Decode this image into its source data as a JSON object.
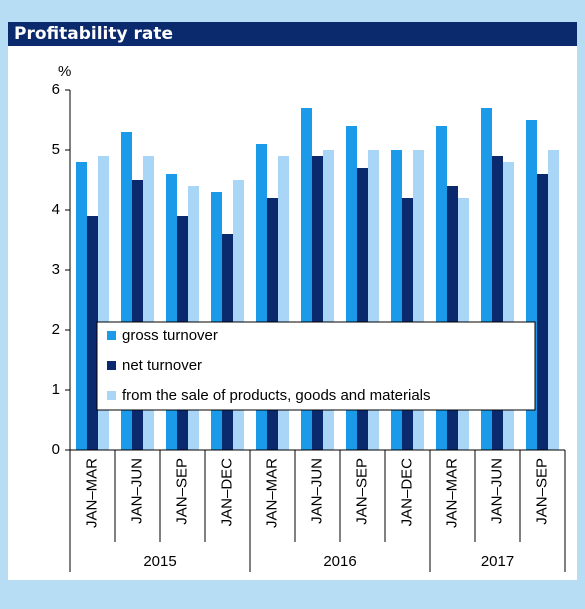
{
  "chart_data": {
    "type": "bar",
    "title": "Profitability rate",
    "y_label": "%",
    "groups": [
      {
        "name": "2015",
        "categories": [
          "JAN–MAR",
          "JAN–JUN",
          "JAN–SEP",
          "JAN–DEC"
        ]
      },
      {
        "name": "2016",
        "categories": [
          "JAN–MAR",
          "JAN–JUN",
          "JAN–SEP",
          "JAN–DEC"
        ]
      },
      {
        "name": "2017",
        "categories": [
          "JAN–MAR",
          "JAN–JUN",
          "JAN–SEP"
        ]
      }
    ],
    "series": [
      {
        "name": "gross turnover",
        "color": "#1a9ae8",
        "values": [
          4.8,
          5.3,
          4.6,
          4.3,
          5.1,
          5.7,
          5.4,
          5.0,
          5.4,
          5.7,
          5.5
        ]
      },
      {
        "name": "net turnover",
        "color": "#0b2a6e",
        "values": [
          3.9,
          4.5,
          3.9,
          3.6,
          4.2,
          4.9,
          4.7,
          4.2,
          4.4,
          4.9,
          4.6
        ]
      },
      {
        "name": "from the sale of products, goods and materials",
        "color": "#a9d5f7",
        "values": [
          4.9,
          4.9,
          4.4,
          4.5,
          4.9,
          5.0,
          5.0,
          5.0,
          4.2,
          4.8,
          5.0
        ]
      }
    ],
    "ylim": [
      0,
      6
    ],
    "yticks": [
      0,
      1,
      2,
      3,
      4,
      5,
      6
    ],
    "grid": false
  }
}
